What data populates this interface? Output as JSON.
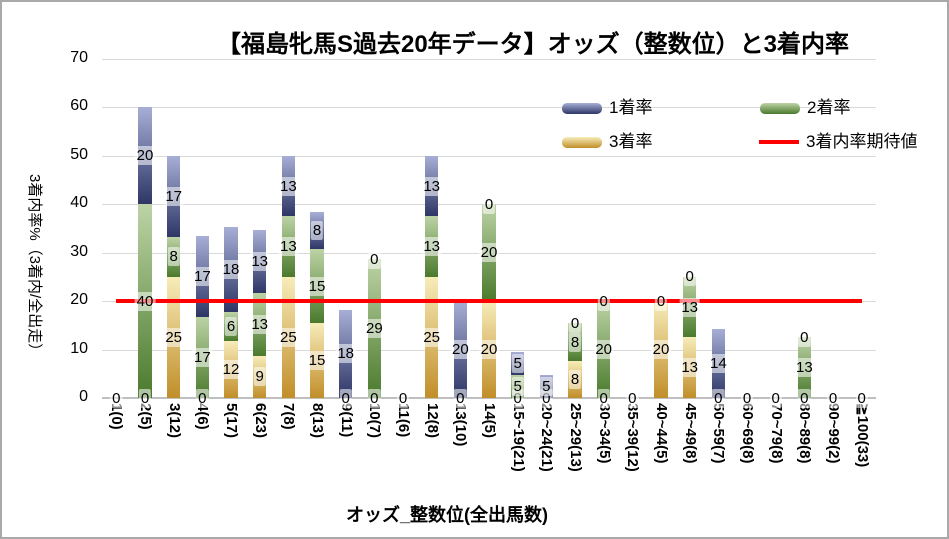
{
  "chart_data": {
    "type": "bar",
    "stacked": true,
    "title": "【福島牝馬S過去20年データ】オッズ（整数位）と3着内率",
    "xlabel": "オッズ_整数位(全出馬数)",
    "ylabel": "3着内率%（3着内/全出走）",
    "ylim": [
      0,
      70
    ],
    "yticks": [
      0,
      10,
      20,
      30,
      40,
      50,
      60,
      70
    ],
    "grid": true,
    "legend_position": "top-right",
    "categories": [
      "1(0)",
      "2(5)",
      "3(12)",
      "4(6)",
      "5(17)",
      "6(23)",
      "7(8)",
      "8(13)",
      "9(11)",
      "10(7)",
      "11(6)",
      "12(8)",
      "13(10)",
      "14(5)",
      "15~19(21)",
      "20~24(21)",
      "25~29(13)",
      "30~34(5)",
      "35~39(12)",
      "40~44(5)",
      "45~49(8)",
      "50~59(7)",
      "60~69(8)",
      "70~79(8)",
      "80~89(8)",
      "90~99(2)",
      "≧100(33)"
    ],
    "series": [
      {
        "name": "3着率",
        "role": "third_rate",
        "values": [
          0,
          0,
          25,
          0,
          11.8,
          8.7,
          25,
          15.4,
          0,
          0,
          0,
          25,
          0,
          20,
          0,
          0,
          7.7,
          0,
          0,
          20,
          12.5,
          0,
          0,
          0,
          0,
          0,
          0
        ],
        "labels": [
          "0",
          "0",
          "25",
          "0",
          "12",
          "9",
          "25",
          "15",
          "0",
          "0",
          "0",
          "25",
          "0",
          "20",
          "0",
          "0",
          "8",
          "0",
          "0",
          "20",
          "13",
          "0",
          "0",
          "0",
          "0",
          "0",
          "0"
        ]
      },
      {
        "name": "2着率",
        "role": "second_rate",
        "values": [
          0,
          40,
          8.3,
          16.7,
          5.9,
          13,
          12.5,
          15.4,
          0,
          28.6,
          0,
          12.5,
          0,
          20,
          4.8,
          0,
          7.7,
          20,
          0,
          0,
          12.5,
          0,
          0,
          0,
          12.5,
          0,
          0
        ],
        "labels": [
          "0",
          "40",
          "8",
          "17",
          "6",
          "13",
          "13",
          "15",
          "0",
          "29",
          "0",
          "13",
          "0",
          "20",
          "5",
          "0",
          "8",
          "20",
          "0",
          "0",
          "13",
          "0",
          "0",
          "0",
          "13",
          "0",
          "0"
        ]
      },
      {
        "name": "1着率",
        "role": "first_rate",
        "values": [
          0,
          20,
          16.7,
          16.7,
          17.6,
          13,
          12.5,
          7.7,
          18.2,
          0,
          0,
          12.5,
          20,
          0,
          4.8,
          4.8,
          0,
          0,
          0,
          0,
          0,
          14.3,
          0,
          0,
          0,
          0,
          0
        ],
        "labels": [
          "0",
          "20",
          "17",
          "17",
          "18",
          "13",
          "13",
          "8",
          "18",
          "0",
          "0",
          "13",
          "20",
          "0",
          "5",
          "5",
          "0",
          "0",
          "0",
          "0",
          "0",
          "14",
          "0",
          "0",
          "0",
          "0",
          "0"
        ]
      }
    ],
    "reference_line": {
      "name": "3着内率期待値",
      "value": 20
    },
    "colors": {
      "first_rate_bottom": "#2d3665",
      "first_rate_top": "#a7afd6",
      "second_rate_bottom": "#4a7a2c",
      "second_rate_top": "#bdd3a6",
      "third_rate_bottom": "#c18e29",
      "third_rate_top": "#f7ecba",
      "expected_line": "#ff0000",
      "gridline": "#d9d9d9",
      "axis_line": "#bfbfbf"
    }
  }
}
